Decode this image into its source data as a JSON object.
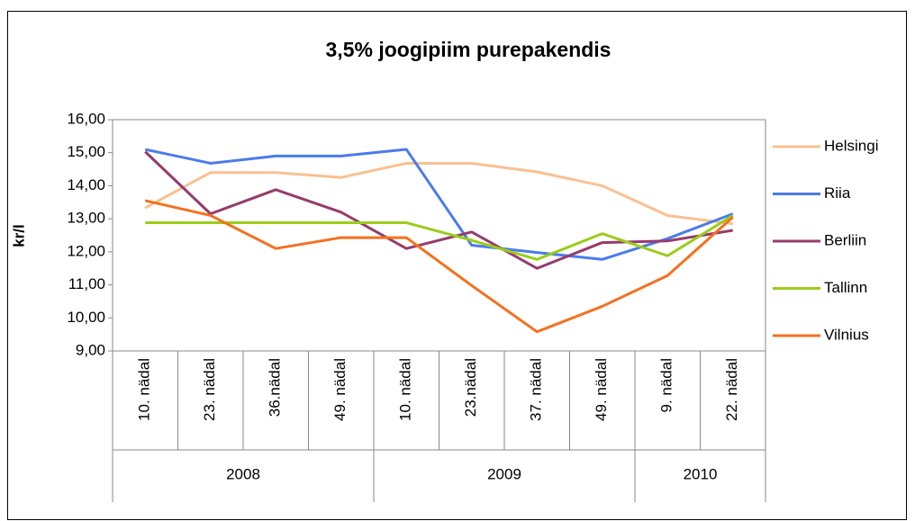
{
  "chart_data": {
    "type": "line",
    "title": "3,5%  joogipiim purepakendis",
    "y_label": "kr/l",
    "categories": [
      "10. nädal",
      "23. nädal",
      "36.nädal",
      "49. nädal",
      "10. nädal",
      "23.nädal",
      "37. nädal",
      "49. nädal",
      "9. nädal",
      "22. nädal"
    ],
    "category_groups": [
      {
        "label": "2008",
        "span": 4
      },
      {
        "label": "2009",
        "span": 4
      },
      {
        "label": "2010",
        "span": 2
      }
    ],
    "ylim": [
      9,
      16
    ],
    "yticks": [
      {
        "value": 9,
        "label": "9,00"
      },
      {
        "value": 10,
        "label": "10,00"
      },
      {
        "value": 11,
        "label": "11,00"
      },
      {
        "value": 12,
        "label": "12,00"
      },
      {
        "value": 13,
        "label": "13,00"
      },
      {
        "value": 14,
        "label": "14,00"
      },
      {
        "value": 15,
        "label": "15,00"
      },
      {
        "value": 16,
        "label": "16,00"
      }
    ],
    "grid": false,
    "legend": "right",
    "series": [
      {
        "name": "Helsingi",
        "color": "#fac090",
        "values": [
          13.33,
          14.4,
          14.4,
          14.25,
          14.68,
          14.68,
          14.42,
          14.0,
          13.1,
          12.85
        ]
      },
      {
        "name": "Riia",
        "color": "#4a7bec",
        "values": [
          15.1,
          14.68,
          14.9,
          14.9,
          15.1,
          12.2,
          11.98,
          11.77,
          12.4,
          13.15
        ]
      },
      {
        "name": "Berliin",
        "color": "#953c6b",
        "values": [
          15.03,
          13.15,
          13.88,
          13.2,
          12.1,
          12.6,
          11.5,
          12.28,
          12.33,
          12.65
        ]
      },
      {
        "name": "Tallinn",
        "color": "#9acd1a",
        "values": [
          12.88,
          12.88,
          12.88,
          12.88,
          12.88,
          12.35,
          11.77,
          12.55,
          11.88,
          13.1
        ]
      },
      {
        "name": "Vilnius",
        "color": "#f5701e",
        "values": [
          13.55,
          13.1,
          12.1,
          12.43,
          12.43,
          10.98,
          9.58,
          10.35,
          11.28,
          13.05
        ]
      }
    ]
  }
}
